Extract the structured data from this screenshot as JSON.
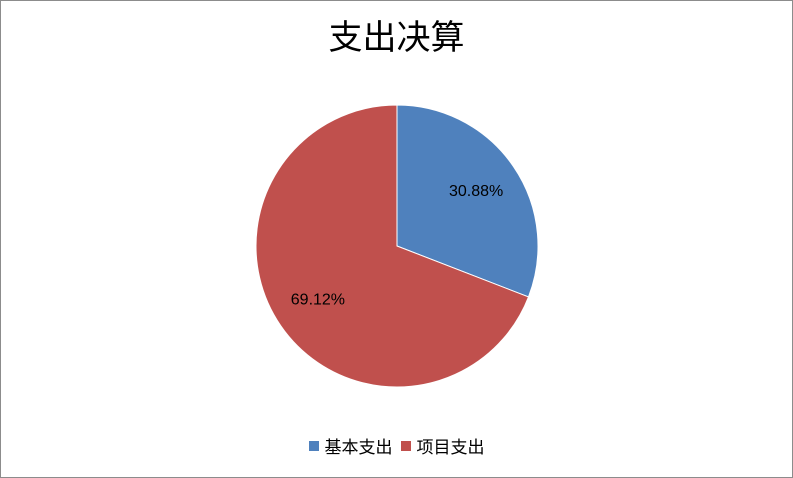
{
  "chart_data": {
    "type": "pie",
    "title": "支出决算",
    "categories": [
      "基本支出",
      "项目支出"
    ],
    "values": [
      30.88,
      69.12
    ],
    "data_labels": [
      "30.88%",
      "69.12%"
    ],
    "colors": [
      "#4f81bd",
      "#c0504d"
    ],
    "legend_position": "bottom"
  }
}
